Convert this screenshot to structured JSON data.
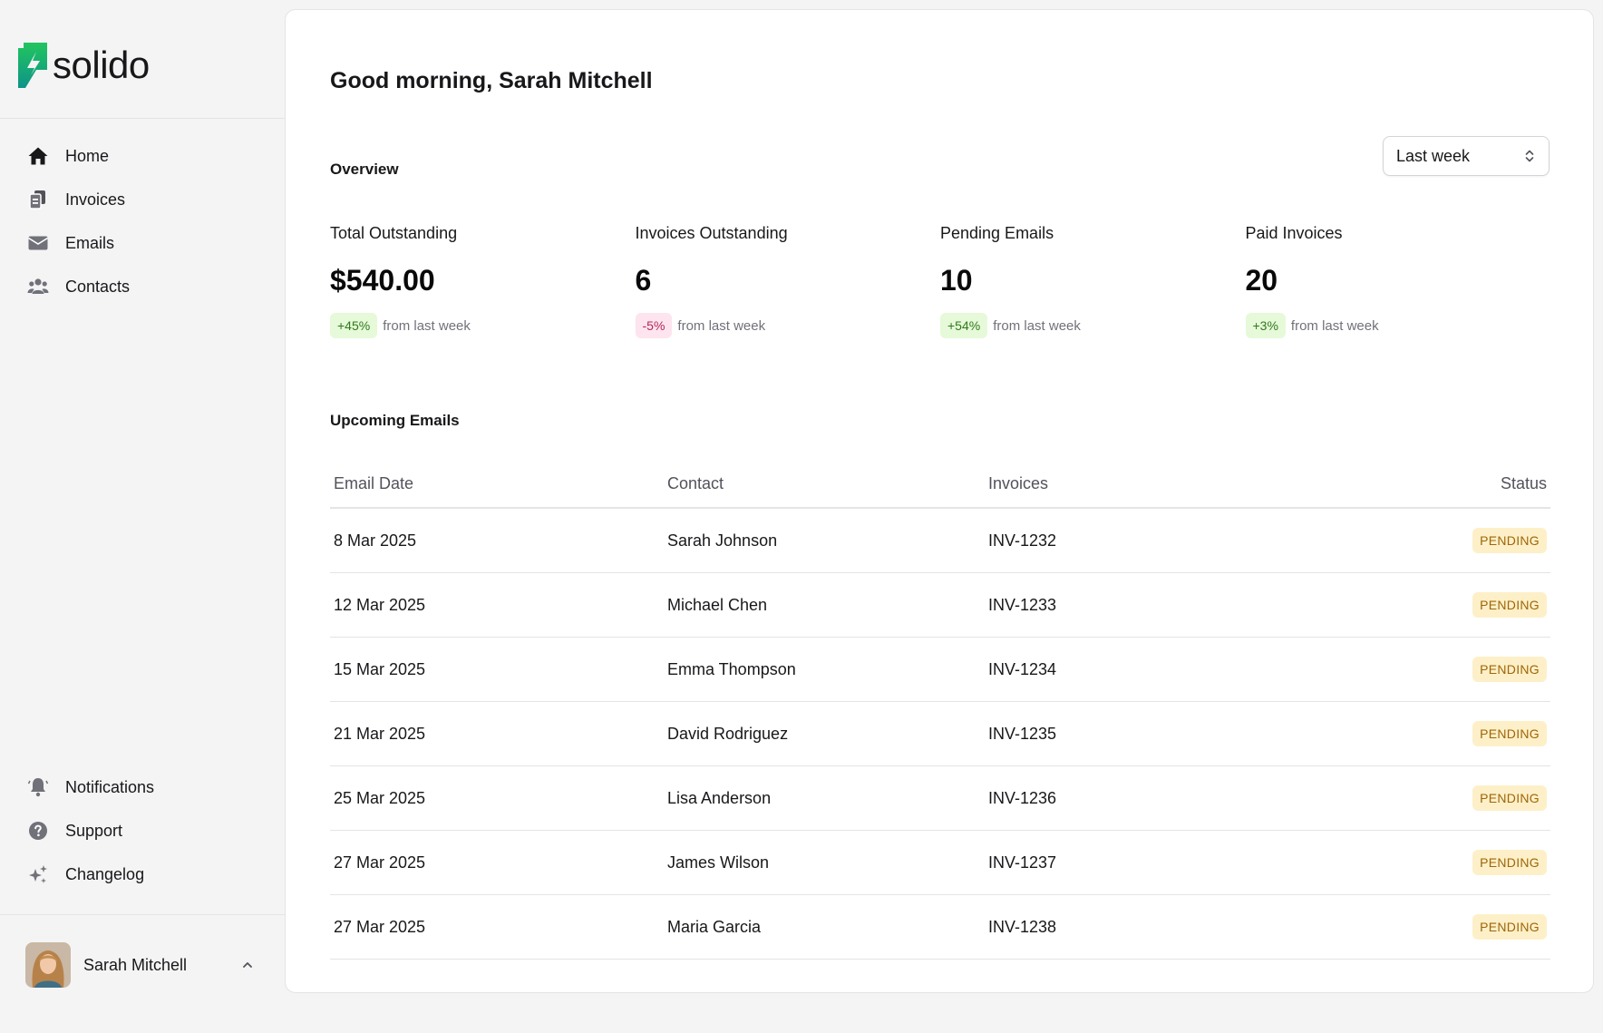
{
  "brand": {
    "name": "solido",
    "accent": "#10b981"
  },
  "nav": {
    "primary": [
      {
        "label": "Home",
        "icon": "home-icon"
      },
      {
        "label": "Invoices",
        "icon": "invoices-icon"
      },
      {
        "label": "Emails",
        "icon": "mail-icon"
      },
      {
        "label": "Contacts",
        "icon": "users-icon"
      }
    ],
    "secondary": [
      {
        "label": "Notifications",
        "icon": "bell-icon"
      },
      {
        "label": "Support",
        "icon": "help-icon"
      },
      {
        "label": "Changelog",
        "icon": "sparkles-icon"
      }
    ]
  },
  "user": {
    "name": "Sarah Mitchell"
  },
  "main": {
    "greeting": "Good morning, Sarah Mitchell",
    "overview_title": "Overview",
    "range": {
      "selected": "Last week"
    },
    "metrics": [
      {
        "label": "Total Outstanding",
        "value": "$540.00",
        "change": "+45%",
        "trend": "up",
        "note": "from last week"
      },
      {
        "label": "Invoices Outstanding",
        "value": "6",
        "change": "-5%",
        "trend": "down",
        "note": "from last week"
      },
      {
        "label": "Pending Emails",
        "value": "10",
        "change": "+54%",
        "trend": "up",
        "note": "from last week"
      },
      {
        "label": "Paid Invoices",
        "value": "20",
        "change": "+3%",
        "trend": "up",
        "note": "from last week"
      }
    ],
    "upcoming_title": "Upcoming Emails",
    "table": {
      "columns": [
        "Email Date",
        "Contact",
        "Invoices",
        "Status"
      ],
      "rows": [
        {
          "date": "8 Mar 2025",
          "contact": "Sarah Johnson",
          "invoice": "INV-1232",
          "status": "PENDING"
        },
        {
          "date": "12 Mar 2025",
          "contact": "Michael Chen",
          "invoice": "INV-1233",
          "status": "PENDING"
        },
        {
          "date": "15 Mar 2025",
          "contact": "Emma Thompson",
          "invoice": "INV-1234",
          "status": "PENDING"
        },
        {
          "date": "21 Mar 2025",
          "contact": "David Rodriguez",
          "invoice": "INV-1235",
          "status": "PENDING"
        },
        {
          "date": "25 Mar 2025",
          "contact": "Lisa Anderson",
          "invoice": "INV-1236",
          "status": "PENDING"
        },
        {
          "date": "27 Mar 2025",
          "contact": "James Wilson",
          "invoice": "INV-1237",
          "status": "PENDING"
        },
        {
          "date": "27 Mar 2025",
          "contact": "Maria Garcia",
          "invoice": "INV-1238",
          "status": "PENDING"
        }
      ]
    }
  }
}
